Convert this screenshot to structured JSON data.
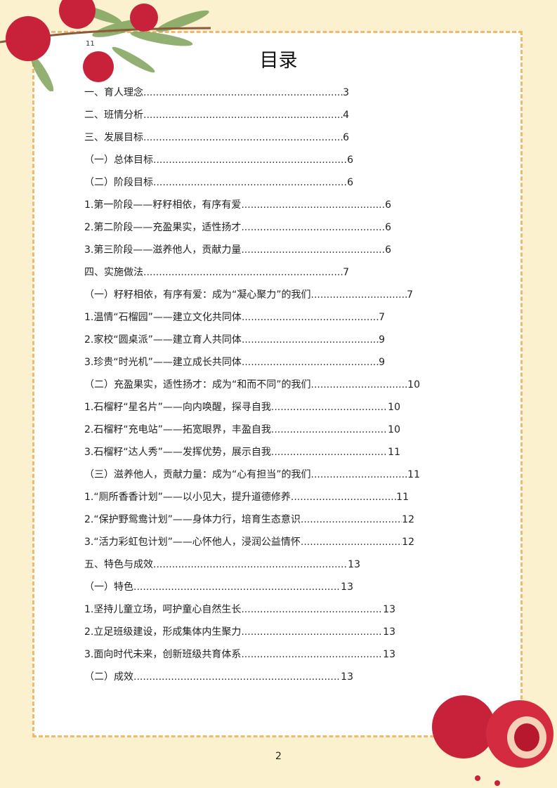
{
  "header": {
    "corner_number": "11",
    "title": "目录"
  },
  "toc": [
    {
      "label": "一、育人理念",
      "page": "3"
    },
    {
      "label": "二、班情分析",
      "page": "4"
    },
    {
      "label": "三、发展目标",
      "page": "6"
    },
    {
      "label": "（一）总体目标",
      "page": "6"
    },
    {
      "label": "（二）阶段目标",
      "page": "6"
    },
    {
      "label": "1.第一阶段——籽籽相依，有序有爱",
      "page": "6"
    },
    {
      "label": "2.第二阶段——充盈果实，适性扬才",
      "page": "6"
    },
    {
      "label": "3.第三阶段——滋养他人，贡献力量",
      "page": "6"
    },
    {
      "label": "四、实施做法",
      "page": "7"
    },
    {
      "label": "（一）籽籽相依，有序有爱：成为“凝心聚力”的我们",
      "page": "7"
    },
    {
      "label": "1.温情“石榴园”——建立文化共同体",
      "page": "7"
    },
    {
      "label": "2.家校“圆桌派”——建立育人共同体",
      "page": "9"
    },
    {
      "label": "3.珍贵“时光机”——建立成长共同体",
      "page": "9"
    },
    {
      "label": "（二）充盈果实，适性扬才：成为“和而不同”的我们",
      "page": "10"
    },
    {
      "label": "1.石榴籽“星名片”——向内唤醒，探寻自我",
      "page": "10"
    },
    {
      "label": "2.石榴籽“充电站”——拓宽眼界，丰盈自我",
      "page": "10"
    },
    {
      "label": "3.石榴籽“达人秀”——发挥优势，展示自我",
      "page": "11"
    },
    {
      "label": "（三）滋养他人，贡献力量：成为“心有担当”的我们",
      "page": "11"
    },
    {
      "label": "1.“厕所香香计划”——以小见大，提升道德修养",
      "page": "11"
    },
    {
      "label": "2.“保护野鸳鸯计划”——身体力行，培育生态意识",
      "page": "12"
    },
    {
      "label": "3.“活力彩虹包计划”——心怀他人，浸润公益情怀",
      "page": "12"
    },
    {
      "label": "五、特色与成效",
      "page": "13"
    },
    {
      "label": "（一）特色",
      "page": "13"
    },
    {
      "label": "1.坚持儿童立场，呵护童心自然生长",
      "page": "13"
    },
    {
      "label": "2.立足班级建设，形成集体内生聚力",
      "page": "13"
    },
    {
      "label": "3.面向时代未来，创新班级共育体系",
      "page": "13"
    },
    {
      "label": "（二）成效",
      "page": "13"
    }
  ],
  "footer": {
    "page_number": "2"
  },
  "colors": {
    "background": "#fcf1cf",
    "border": "#f2b96a",
    "fruit": "#c8213a",
    "leaf": "#6f9a4a"
  }
}
